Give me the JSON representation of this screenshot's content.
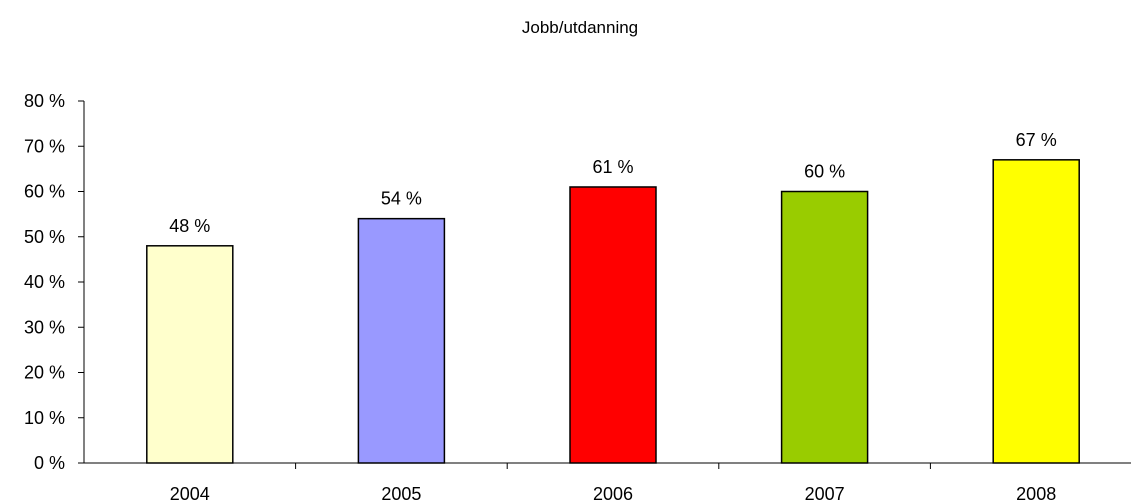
{
  "chart_data": {
    "type": "bar",
    "title": "Jobb/utdanning",
    "xlabel": "",
    "ylabel": "",
    "categories": [
      "2004",
      "2005",
      "2006",
      "2007",
      "2008"
    ],
    "values": [
      48,
      54,
      61,
      60,
      67
    ],
    "data_labels": [
      "48 %",
      "54 %",
      "61 %",
      "60 %",
      "67 %"
    ],
    "bar_colors": [
      "#ffffcc",
      "#9999ff",
      "#ff0000",
      "#99cc00",
      "#ffff00"
    ],
    "ylim": [
      0,
      80
    ],
    "yticks": [
      0,
      10,
      20,
      30,
      40,
      50,
      60,
      70,
      80
    ],
    "ytick_labels": [
      "0 %",
      "10 %",
      "20 %",
      "30 %",
      "40 %",
      "50 %",
      "60 %",
      "70 %",
      "80 %"
    ],
    "grid": false,
    "legend": "none"
  }
}
